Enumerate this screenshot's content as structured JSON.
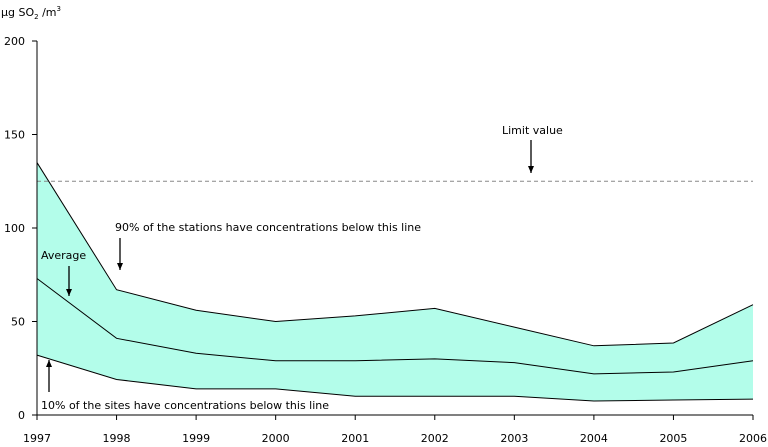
{
  "chart_data": {
    "type": "area",
    "title": "",
    "ylabel": "µg SO2 /m3",
    "ylabel_parts": {
      "main": "µg SO",
      "sub": "2",
      "mid": " /m",
      "sup": "3"
    },
    "xlabel": "",
    "ylim": [
      0,
      200
    ],
    "yticks": [
      0,
      50,
      100,
      150,
      200
    ],
    "x": [
      "1997",
      "1998",
      "1999",
      "2000",
      "2001",
      "2002",
      "2003",
      "2004",
      "2005",
      "2006"
    ],
    "series": [
      {
        "name": "90th percentile",
        "values": [
          135,
          67,
          56,
          50,
          53,
          57,
          47,
          37,
          38.5,
          59
        ]
      },
      {
        "name": "Average",
        "values": [
          73,
          41,
          33,
          29,
          29,
          30,
          28,
          22,
          23,
          29
        ]
      },
      {
        "name": "10th percentile",
        "values": [
          32,
          19,
          14,
          14,
          10,
          10,
          10,
          7.5,
          8,
          8.5
        ]
      }
    ],
    "limit_value": 125,
    "annotations": {
      "limit": "Limit value",
      "p90": "90% of the stations have concentrations below this line",
      "avg": "Average",
      "p10": "10% of the sites have concentrations below this line"
    },
    "fill_color": "#b3fdea",
    "grid": false
  }
}
